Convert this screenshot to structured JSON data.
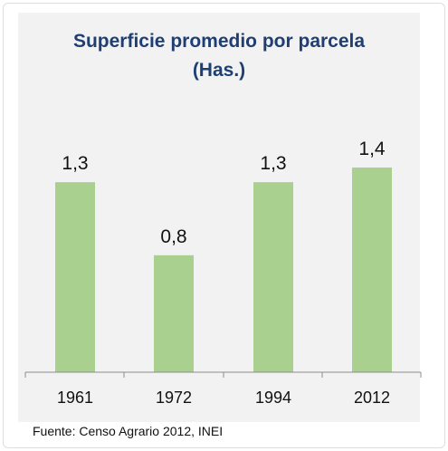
{
  "chart_data": {
    "type": "bar",
    "title": "Superficie promedio por parcela",
    "subtitle": "(Has.)",
    "categories": [
      "1961",
      "1972",
      "1994",
      "2012"
    ],
    "values": [
      1.3,
      0.8,
      1.3,
      1.4
    ],
    "data_labels": [
      "1,3",
      "0,8",
      "1,3",
      "1,4"
    ],
    "xlabel": "",
    "ylabel": "",
    "ylim": [
      0,
      1.4
    ],
    "grid": false,
    "legend": "none",
    "bar_color": "#a9d08e"
  },
  "source": "Fuente: Censo Agrario 2012, INEI"
}
